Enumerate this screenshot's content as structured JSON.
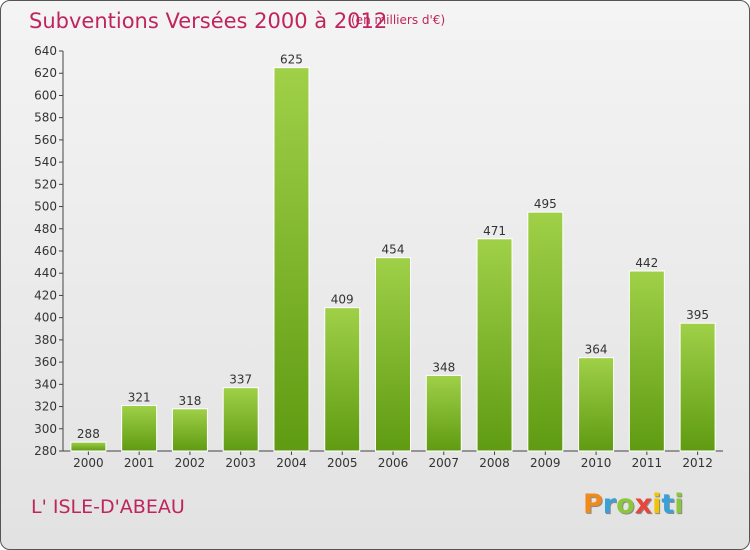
{
  "header": {
    "title": "Subventions Versées 2000 à 2012",
    "subtitle": "(en milliers d'€)"
  },
  "footer": {
    "place": "L' ISLE-D'ABEAU",
    "logo_letters": [
      "P",
      "r",
      "o",
      "x",
      "i",
      "t",
      "i"
    ],
    "logo_colors": [
      "#f08a1c",
      "#3aa0d8",
      "#8cc63f",
      "#e8453c",
      "#f2c500",
      "#3aa0d8",
      "#8cc63f"
    ]
  },
  "chart_data": {
    "type": "bar",
    "title": "Subventions Versées 2000 à 2012",
    "subtitle": "(en milliers d'€)",
    "categories": [
      "2000",
      "2001",
      "2002",
      "2003",
      "2004",
      "2005",
      "2006",
      "2007",
      "2008",
      "2009",
      "2010",
      "2011",
      "2012"
    ],
    "values": [
      288,
      321,
      318,
      337,
      625,
      409,
      454,
      348,
      471,
      495,
      364,
      442,
      395
    ],
    "ylim": [
      280,
      640
    ],
    "ytick_step": 20,
    "grid": false,
    "bar_color": "#7ab82e"
  }
}
